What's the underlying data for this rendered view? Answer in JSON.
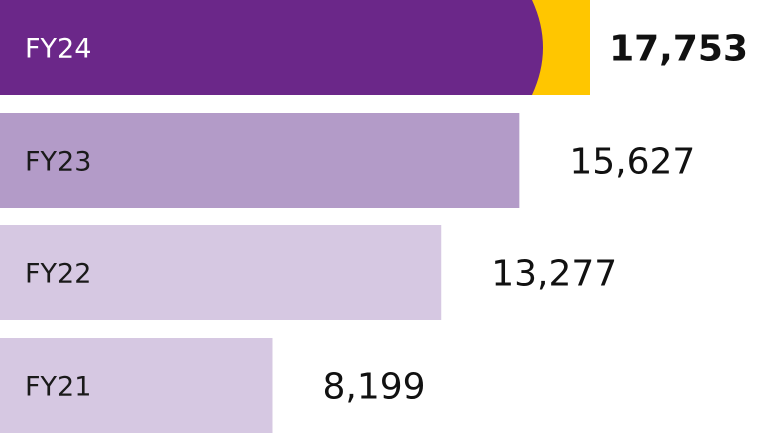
{
  "chart_data": {
    "type": "bar",
    "orientation": "horizontal",
    "categories": [
      "FY24",
      "FY23",
      "FY22",
      "FY21"
    ],
    "values": [
      17753,
      15627,
      13277,
      8199
    ],
    "value_labels": [
      "17,753",
      "15,627",
      "13,277",
      "8,199"
    ],
    "xlim": [
      0,
      17753
    ],
    "grid": false,
    "title": "",
    "xlabel": "",
    "ylabel": "",
    "colors": [
      "#6B2789",
      "#B39BC8",
      "#D6C8E2",
      "#D6C8E2"
    ],
    "highlight_accent": "#FFC600"
  }
}
